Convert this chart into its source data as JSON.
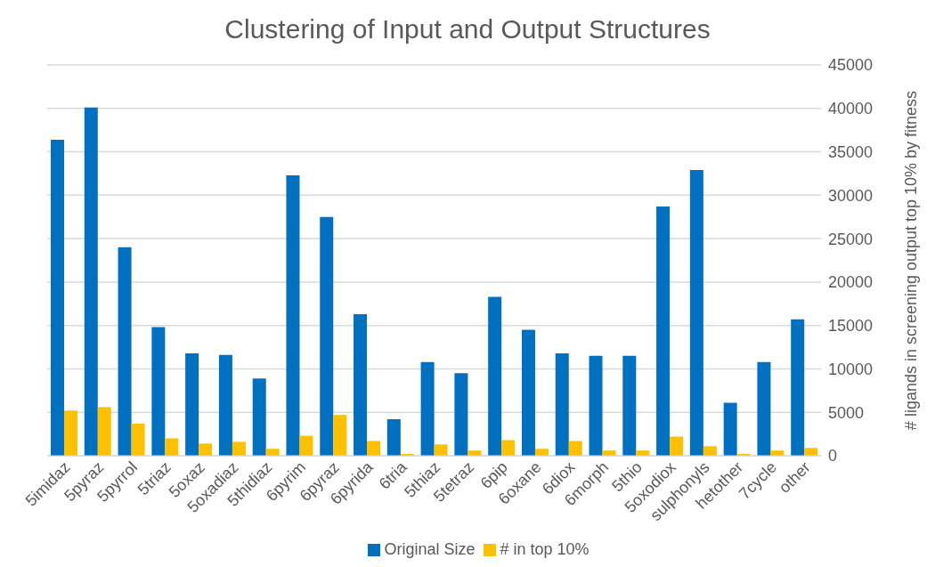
{
  "chart_data": {
    "type": "bar",
    "title": "Clustering of Input and Output Structures",
    "y2label": "# ligands in screening output top 10% by fitness",
    "categories": [
      "5imidaz",
      "5pyraz",
      "5pyrrol",
      "5triaz",
      "5oxaz",
      "5oxadiaz",
      "5thidiaz",
      "6pyrim",
      "6pyraz",
      "6pyrida",
      "6tria",
      "5thiaz",
      "5tetraz",
      "6pip",
      "6oxane",
      "6diox",
      "6morph",
      "5thio",
      "5oxodiox",
      "sulphonyls",
      "hetother",
      "7cycle",
      "other"
    ],
    "series": [
      {
        "name": "Original Size",
        "color": "#0070c0",
        "axis": "y2",
        "values": [
          36400,
          40100,
          24000,
          14800,
          11800,
          11600,
          8900,
          32300,
          27500,
          16300,
          4200,
          10800,
          9500,
          18300,
          14500,
          11800,
          11500,
          11500,
          28700,
          32900,
          6100,
          10800,
          15700
        ]
      },
      {
        "name": "# in top 10%",
        "color": "#ffc000",
        "axis": "y2",
        "values": [
          5200,
          5600,
          3700,
          2000,
          1400,
          1600,
          800,
          2300,
          4700,
          1700,
          200,
          1300,
          600,
          1800,
          800,
          1700,
          600,
          600,
          2200,
          1100,
          200,
          600,
          900
        ]
      }
    ],
    "y2lim": [
      0,
      45000
    ],
    "y2ticks": [
      0,
      5000,
      10000,
      15000,
      20000,
      25000,
      30000,
      35000,
      40000,
      45000
    ],
    "grid": "y",
    "legend": "bottom"
  }
}
